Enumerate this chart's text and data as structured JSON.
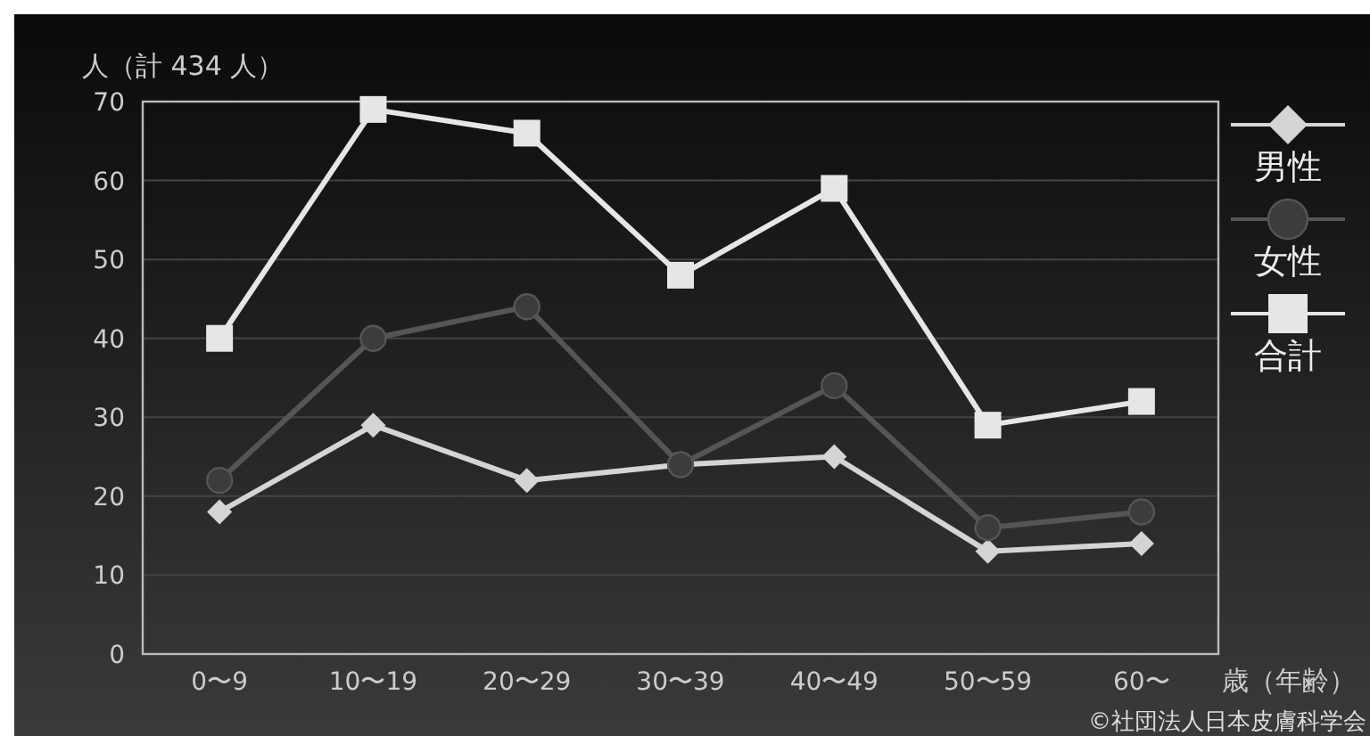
{
  "chart_data": {
    "type": "line",
    "categories": [
      "0〜9",
      "10〜19",
      "20〜29",
      "30〜39",
      "40〜49",
      "50〜59",
      "60〜"
    ],
    "series": [
      {
        "name": "男性",
        "color": "#d4d4d4",
        "marker": "diamond",
        "values": [
          18,
          29,
          22,
          24,
          25,
          13,
          14
        ]
      },
      {
        "name": "女性",
        "color": "#555555",
        "marker": "circle",
        "values": [
          22,
          40,
          44,
          24,
          34,
          16,
          18
        ]
      },
      {
        "name": "合計",
        "color": "#e6e6e6",
        "marker": "square",
        "values": [
          40,
          69,
          66,
          48,
          59,
          29,
          32
        ]
      }
    ],
    "ylabel": "人（計 434 人）",
    "xlabel": "歳（年齢）",
    "ylim": [
      0,
      70
    ],
    "yticks": [
      0,
      10,
      20,
      30,
      40,
      50,
      60,
      70
    ],
    "grid": "y",
    "legend": "right",
    "annotations": [
      "©社団法人日本皮膚科学会"
    ]
  }
}
